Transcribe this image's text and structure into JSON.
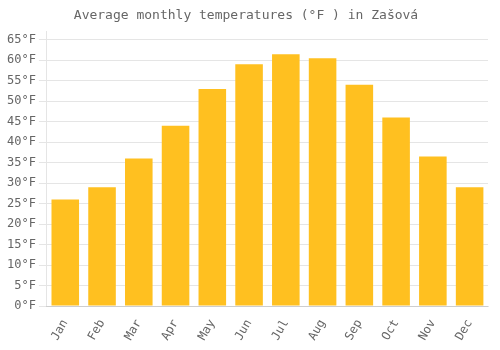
{
  "chart_data": {
    "type": "bar",
    "title": "Average monthly temperatures (°F ) in Zašová",
    "categories": [
      "Jan",
      "Feb",
      "Mar",
      "Apr",
      "May",
      "Jun",
      "Jul",
      "Aug",
      "Sep",
      "Oct",
      "Nov",
      "Dec"
    ],
    "values": [
      26.0,
      29.0,
      36.0,
      44.0,
      53.0,
      59.0,
      61.5,
      60.5,
      54.0,
      46.0,
      36.5,
      29.0
    ],
    "color": "#FFC020",
    "ylim": [
      0,
      67
    ],
    "yticks": [
      {
        "value": 0,
        "label": "0°F"
      },
      {
        "value": 5,
        "label": "5°F"
      },
      {
        "value": 10,
        "label": "10°F"
      },
      {
        "value": 15,
        "label": "15°F"
      },
      {
        "value": 20,
        "label": "20°F"
      },
      {
        "value": 25,
        "label": "25°F"
      },
      {
        "value": 30,
        "label": "30°F"
      },
      {
        "value": 35,
        "label": "35°F"
      },
      {
        "value": 40,
        "label": "40°F"
      },
      {
        "value": 45,
        "label": "45°F"
      },
      {
        "value": 50,
        "label": "50°F"
      },
      {
        "value": 55,
        "label": "55°F"
      },
      {
        "value": 60,
        "label": "60°F"
      },
      {
        "value": 65,
        "label": "65°F"
      }
    ],
    "grid": true
  }
}
